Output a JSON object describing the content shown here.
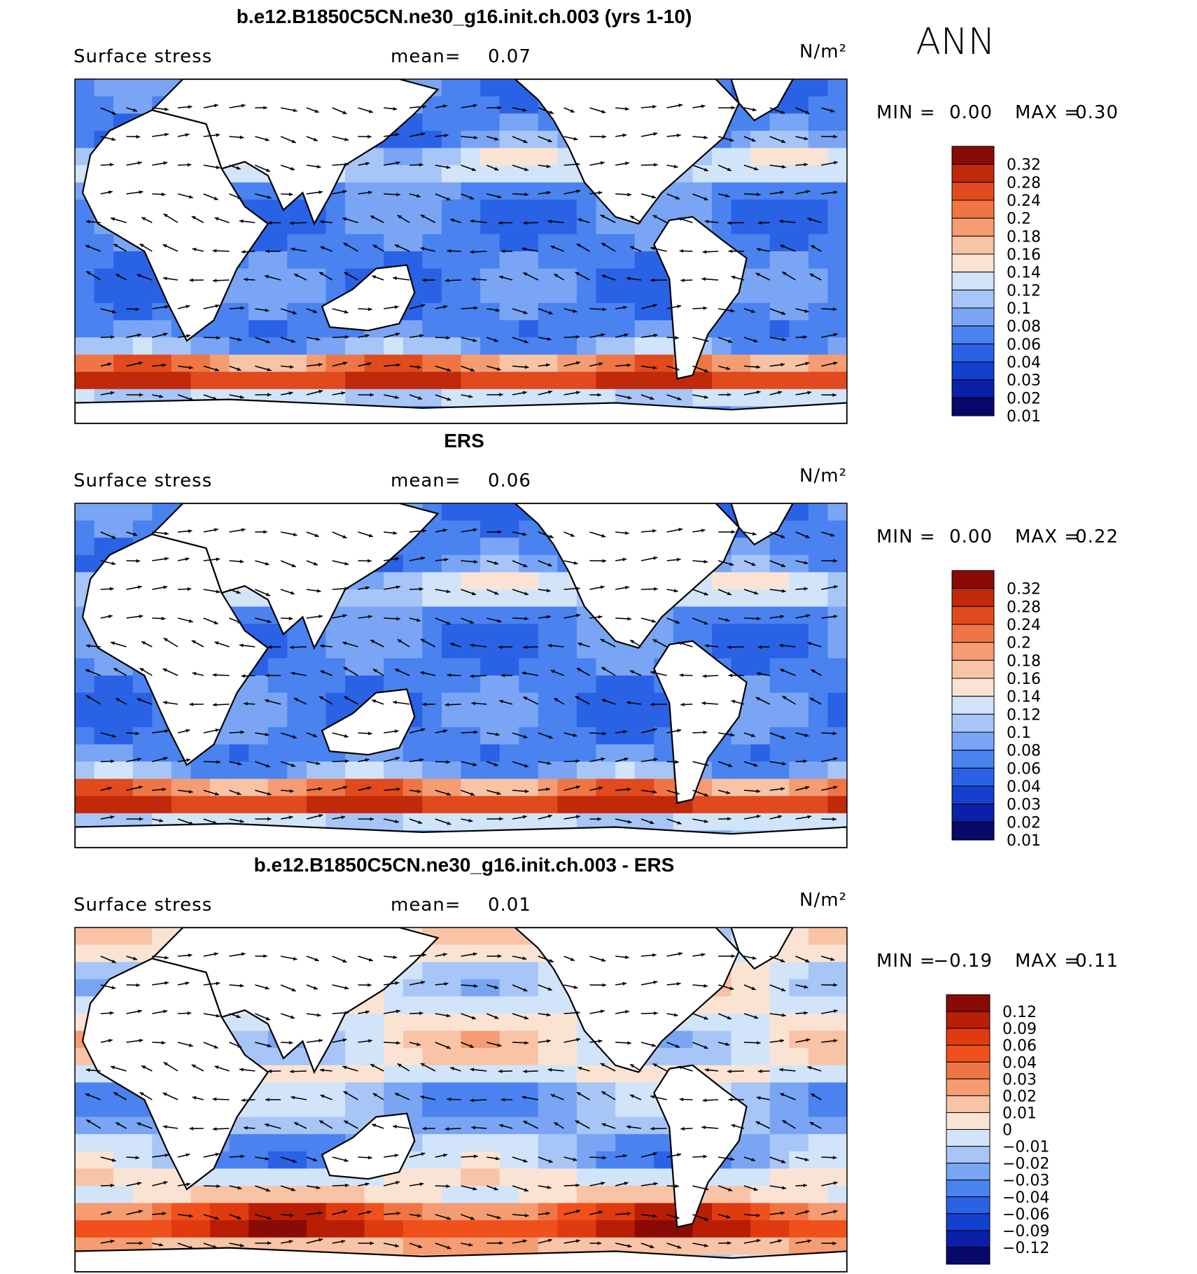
{
  "season_label": "ANN",
  "palette": {
    "positive": [
      "#08086b",
      "#0a20a8",
      "#1440d0",
      "#2a62e6",
      "#4a82f0",
      "#79a5f4",
      "#a7c5f7",
      "#d2e4fa",
      "#fbe3d3",
      "#f9c3a6",
      "#f59c72",
      "#ef7644",
      "#e04a1d",
      "#c02a0a",
      "#8a0a05"
    ],
    "difference": [
      "#08086b",
      "#0a20a8",
      "#1440d0",
      "#2a62e6",
      "#4a82f0",
      "#79a5f4",
      "#a7c5f7",
      "#d2e4fa",
      "#fbe3d3",
      "#f9c3a6",
      "#f59c72",
      "#ef7644",
      "#f0501c",
      "#e03a10",
      "#b81e05",
      "#8a0a05"
    ]
  },
  "chart_data": [
    {
      "type": "heatmap",
      "title": "b.e12.B1850C5CN.ne30_g16.init.ch.003 (yrs 1-10)",
      "variable": "Surface stress",
      "mean_label": "mean=",
      "mean": "0.07",
      "units": "N/m²",
      "min_label": "MIN =",
      "min": "0.00",
      "max_label": "MAX =",
      "max": "0.30",
      "colorbar_levels": [
        "0.32",
        "0.28",
        "0.24",
        "0.2",
        "0.18",
        "0.16",
        "0.14",
        "0.12",
        "0.1",
        "0.08",
        "0.06",
        "0.04",
        "0.03",
        "0.02",
        "0.01"
      ],
      "palette": "positive",
      "overlay": "wind stress vectors"
    },
    {
      "type": "heatmap",
      "title": "ERS",
      "variable": "Surface stress",
      "mean_label": "mean=",
      "mean": "0.06",
      "units": "N/m²",
      "min_label": "MIN =",
      "min": "0.00",
      "max_label": "MAX =",
      "max": "0.22",
      "colorbar_levels": [
        "0.32",
        "0.28",
        "0.24",
        "0.2",
        "0.18",
        "0.16",
        "0.14",
        "0.12",
        "0.1",
        "0.08",
        "0.06",
        "0.04",
        "0.03",
        "0.02",
        "0.01"
      ],
      "palette": "positive",
      "overlay": "wind stress vectors"
    },
    {
      "type": "heatmap",
      "title": "b.e12.B1850C5CN.ne30_g16.init.ch.003 - ERS",
      "variable": "Surface stress",
      "mean_label": "mean=",
      "mean": "0.01",
      "units": "N/m²",
      "min_label": "MIN =",
      "min": "−0.19",
      "max_label": "MAX =",
      "max": "0.11",
      "colorbar_levels": [
        "0.12",
        "0.09",
        "0.06",
        "0.04",
        "0.03",
        "0.02",
        "0.01",
        "0",
        "−0.01",
        "−0.02",
        "−0.03",
        "−0.04",
        "−0.06",
        "−0.09",
        "−0.12"
      ],
      "palette": "difference",
      "overlay": "wind stress vectors"
    }
  ]
}
